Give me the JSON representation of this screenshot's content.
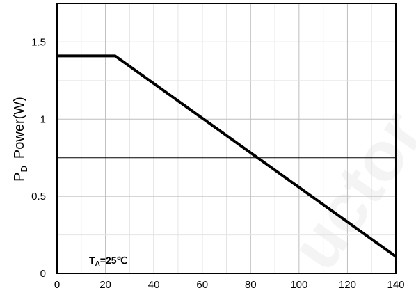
{
  "chart_data": {
    "type": "line",
    "title": "",
    "xlabel": "",
    "ylabel": {
      "main": "P",
      "sub": "D",
      "rest": "Power(W)"
    },
    "xlim": [
      0,
      140
    ],
    "ylim": [
      0,
      1.75
    ],
    "x_ticks": [
      "0",
      "20",
      "40",
      "60",
      "80",
      "100",
      "120",
      "140"
    ],
    "x_tick_values": [
      0,
      20,
      40,
      60,
      80,
      100,
      120,
      140
    ],
    "y_ticks": [
      "0",
      "0.5",
      "1",
      "1.5"
    ],
    "y_tick_values": [
      0,
      0.5,
      1,
      1.5
    ],
    "grid": true,
    "series": [
      {
        "x": [
          0,
          24,
          140
        ],
        "y": [
          1.41,
          1.41,
          0.11
        ],
        "color": "#000000"
      }
    ],
    "annotation": {
      "main": "T",
      "sub": "A",
      "rest": "=25℃"
    },
    "watermark": "uctor"
  }
}
